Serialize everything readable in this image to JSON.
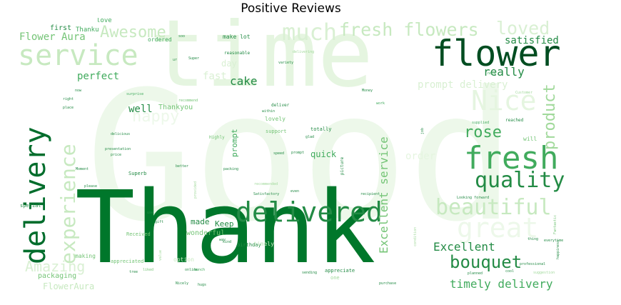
{
  "title": "Positive Reviews",
  "palette": {
    "darkest": "#00441b",
    "dark": "#006d2c",
    "mid_dark": "#238b45",
    "mid": "#41ab5d",
    "mid_light": "#74c476",
    "light": "#a1d99b",
    "lighter": "#c7e9c0",
    "lightest": "#e5f5e0",
    "faint": "#f0f9ed"
  },
  "words": [
    {
      "text": "Good",
      "color": "#edf8ea"
    },
    {
      "text": "time",
      "color": "#e5f5e0"
    },
    {
      "text": "Thank",
      "color": "#00772b"
    },
    {
      "text": "service",
      "color": "#c7e9c0"
    },
    {
      "text": "flower",
      "color": "#004d21"
    },
    {
      "text": "delivery",
      "color": "#006d2c"
    },
    {
      "text": "Nice",
      "color": "#e5f5e0"
    },
    {
      "text": "fresh",
      "color": "#41ab5d"
    },
    {
      "text": "delivered",
      "color": "#238b45"
    },
    {
      "text": "quality",
      "color": "#238b45"
    },
    {
      "text": "beautiful",
      "color": "#c7e9c0"
    },
    {
      "text": "experience",
      "color": "#c7e9c0"
    },
    {
      "text": "great",
      "color": "#edf8ea"
    },
    {
      "text": "much",
      "color": "#d9f0d3"
    },
    {
      "text": "fresh flowers",
      "color": "#c7e9c0"
    },
    {
      "text": "loved",
      "color": "#d9f0d3"
    },
    {
      "text": "Awesome",
      "color": "#c7e9c0"
    },
    {
      "text": "product",
      "color": "#a1d99b"
    },
    {
      "text": "rose",
      "color": "#41ab5d"
    },
    {
      "text": "bouquet",
      "color": "#238b45"
    },
    {
      "text": "Amazing",
      "color": "#d9f0d3"
    },
    {
      "text": "happy",
      "color": "#edf8ea"
    },
    {
      "text": "Excellent service",
      "color": "#74c476"
    },
    {
      "text": "Excellent",
      "color": "#238b45"
    },
    {
      "text": "timely delivery",
      "color": "#41ab5d"
    },
    {
      "text": "cake",
      "color": "#238b45"
    },
    {
      "text": "perfect",
      "color": "#41ab5d"
    },
    {
      "text": "satisfied",
      "color": "#238b45"
    },
    {
      "text": "really",
      "color": "#238b45"
    },
    {
      "text": "Flower Aura",
      "color": "#74c476"
    },
    {
      "text": "well",
      "color": "#238b45"
    },
    {
      "text": "prompt delivery",
      "color": "#d9f0d3"
    },
    {
      "text": "FlowerAura",
      "color": "#c7e9c0"
    },
    {
      "text": "order",
      "color": "#e5f5e0"
    },
    {
      "text": "quick",
      "color": "#41ab5d"
    },
    {
      "text": "fast",
      "color": "#d9f0d3"
    },
    {
      "text": "day",
      "color": "#d9f0d3"
    },
    {
      "text": "made",
      "color": "#238b45"
    },
    {
      "text": "Keep",
      "color": "#238b45"
    },
    {
      "text": "wonderful",
      "color": "#74c476"
    },
    {
      "text": "prompt",
      "color": "#41ab5d"
    },
    {
      "text": "Thankyou",
      "color": "#74c476"
    },
    {
      "text": "packaging",
      "color": "#74c476"
    },
    {
      "text": "first",
      "color": "#238b45"
    },
    {
      "text": "Thanku",
      "color": "#41ab5d"
    },
    {
      "text": "love",
      "color": "#41ab5d"
    },
    {
      "text": "ordered",
      "color": "#41ab5d"
    },
    {
      "text": "make lot",
      "color": "#238b45"
    },
    {
      "text": "lovely",
      "color": "#74c476"
    },
    {
      "text": "support",
      "color": "#74c476"
    },
    {
      "text": "totally",
      "color": "#238b45"
    },
    {
      "text": "birthday",
      "color": "#238b45"
    },
    {
      "text": "timely",
      "color": "#c7e9c0"
    },
    {
      "text": "making",
      "color": "#74c476"
    },
    {
      "text": "appreciated",
      "color": "#74c476"
    },
    {
      "text": "appreciate",
      "color": "#238b45"
    },
    {
      "text": "one",
      "color": "#a1d99b"
    },
    {
      "text": "Received",
      "color": "#74c476"
    },
    {
      "text": "option",
      "color": "#c7e9c0"
    },
    {
      "text": "special",
      "color": "#238b45"
    },
    {
      "text": "Superb",
      "color": "#238b45"
    },
    {
      "text": "Highly",
      "color": "#74c476"
    },
    {
      "text": "reasonable",
      "color": "#238b45"
    },
    {
      "text": "deliver",
      "color": "#238b45"
    },
    {
      "text": "picture",
      "color": "#238b45"
    },
    {
      "text": "will",
      "color": "#74c476"
    },
    {
      "text": "note",
      "color": "#41ab5d"
    },
    {
      "text": "Money",
      "color": "#238b45"
    },
    {
      "text": "work",
      "color": "#41ab5d"
    },
    {
      "text": "recommend",
      "color": "#74c476"
    },
    {
      "text": "surprise",
      "color": "#41ab5d"
    },
    {
      "text": "reached",
      "color": "#238b45"
    },
    {
      "text": "supplied",
      "color": "#41ab5d"
    },
    {
      "text": "professional",
      "color": "#238b45"
    },
    {
      "text": "delicious",
      "color": "#238b45"
    },
    {
      "text": "packing",
      "color": "#238b45"
    },
    {
      "text": "speed",
      "color": "#238b45"
    },
    {
      "text": "please",
      "color": "#238b45"
    },
    {
      "text": "place",
      "color": "#238b45"
    },
    {
      "text": "price",
      "color": "#238b45"
    },
    {
      "text": "bunch",
      "color": "#41ab5d"
    },
    {
      "text": "online",
      "color": "#238b45"
    },
    {
      "text": "planned",
      "color": "#238b45"
    },
    {
      "text": "condition",
      "color": "#a1d99b"
    },
    {
      "text": "recipient",
      "color": "#238b45"
    },
    {
      "text": "Fantastic",
      "color": "#74c476"
    },
    {
      "text": "Super",
      "color": "#238b45"
    },
    {
      "text": "delivering",
      "color": "#a1d99b"
    },
    {
      "text": "variety",
      "color": "#238b45"
    },
    {
      "text": "within",
      "color": "#238b45"
    },
    {
      "text": "glad",
      "color": "#238b45"
    },
    {
      "text": "job",
      "color": "#238b45"
    },
    {
      "text": "soo",
      "color": "#238b45"
    },
    {
      "text": "ur",
      "color": "#238b45"
    },
    {
      "text": "right",
      "color": "#238b45"
    },
    {
      "text": "now",
      "color": "#238b45"
    },
    {
      "text": "Customer",
      "color": "#a1d99b"
    },
    {
      "text": "presentation",
      "color": "#238b45"
    },
    {
      "text": "Moment",
      "color": "#238b45"
    },
    {
      "text": "better",
      "color": "#238b45"
    },
    {
      "text": "recommended",
      "color": "#a1d99b"
    },
    {
      "text": "Satisfactory",
      "color": "#238b45"
    },
    {
      "text": "even",
      "color": "#238b45"
    },
    {
      "text": "Looking forward",
      "color": "#238b45"
    },
    {
      "text": "sending",
      "color": "#238b45"
    },
    {
      "text": "purchase",
      "color": "#238b45"
    },
    {
      "text": "cool",
      "color": "#238b45"
    },
    {
      "text": "suggestion",
      "color": "#a1d99b"
    },
    {
      "text": "thing",
      "color": "#238b45"
    },
    {
      "text": "everytime",
      "color": "#238b45"
    },
    {
      "text": "happiness",
      "color": "#238b45"
    },
    {
      "text": "liked",
      "color": "#74c476"
    },
    {
      "text": "tree",
      "color": "#238b45"
    },
    {
      "text": "Nicely",
      "color": "#238b45"
    },
    {
      "text": "hugs",
      "color": "#238b45"
    },
    {
      "text": "value",
      "color": "#a1d99b"
    },
    {
      "text": "provided",
      "color": "#a1d99b"
    },
    {
      "text": "way",
      "color": "#238b45"
    },
    {
      "text": "kind",
      "color": "#238b45"
    },
    {
      "text": "use",
      "color": "#238b45"
    },
    {
      "text": "gift",
      "color": "#238b45"
    },
    {
      "text": "prompt",
      "color": "#238b45"
    }
  ]
}
